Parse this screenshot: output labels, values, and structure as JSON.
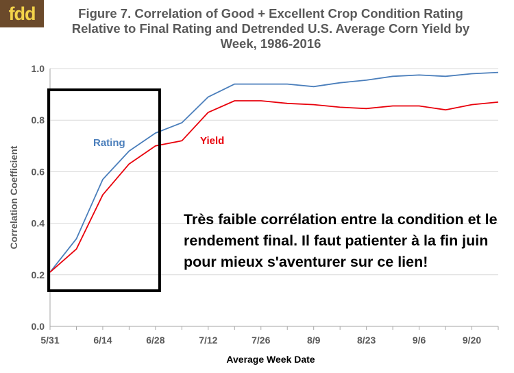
{
  "logo": {
    "text": "fdd",
    "bg_color": "#6b4a2b",
    "text_color": "#f3d34a"
  },
  "chart_data": {
    "type": "line",
    "title": "Figure 7. Correlation of Good + Excellent Crop Condition Rating Relative to Final Rating and Detrended U.S. Average Corn Yield by Week, 1986-2016",
    "xlabel": "Average Week Date",
    "ylabel": "Correlation Coefficient",
    "ylim": [
      0.0,
      1.0
    ],
    "yticks": [
      "0.0",
      "0.2",
      "0.4",
      "0.6",
      "0.8",
      "1.0"
    ],
    "xtick_labels": [
      "5/31",
      "6/14",
      "6/28",
      "7/12",
      "7/26",
      "8/9",
      "8/23",
      "9/6",
      "9/20"
    ],
    "x": [
      "5/31",
      "6/7",
      "6/14",
      "6/21",
      "6/28",
      "7/5",
      "7/12",
      "7/19",
      "7/26",
      "8/2",
      "8/9",
      "8/16",
      "8/23",
      "8/30",
      "9/6",
      "9/13",
      "9/20",
      "9/27"
    ],
    "gridlines": "horizontal",
    "series": [
      {
        "name": "Rating",
        "color": "#4a7ebb",
        "values": [
          0.21,
          0.34,
          0.57,
          0.68,
          0.75,
          0.79,
          0.89,
          0.94,
          0.94,
          0.94,
          0.93,
          0.945,
          0.955,
          0.97,
          0.975,
          0.97,
          0.98,
          0.985
        ]
      },
      {
        "name": "Yield",
        "color": "#e8000b",
        "values": [
          0.21,
          0.3,
          0.51,
          0.63,
          0.7,
          0.72,
          0.83,
          0.875,
          0.875,
          0.865,
          0.86,
          0.85,
          0.845,
          0.855,
          0.855,
          0.84,
          0.86,
          0.87
        ]
      }
    ],
    "annotation": "Très faible corrélation entre la condition et le rendement final. Il faut patienter à la fin juin pour mieux s'aventurer sur ce lien!",
    "highlight_box": {
      "x_from": "5/31",
      "x_to": "6/28",
      "color": "#000000"
    }
  }
}
